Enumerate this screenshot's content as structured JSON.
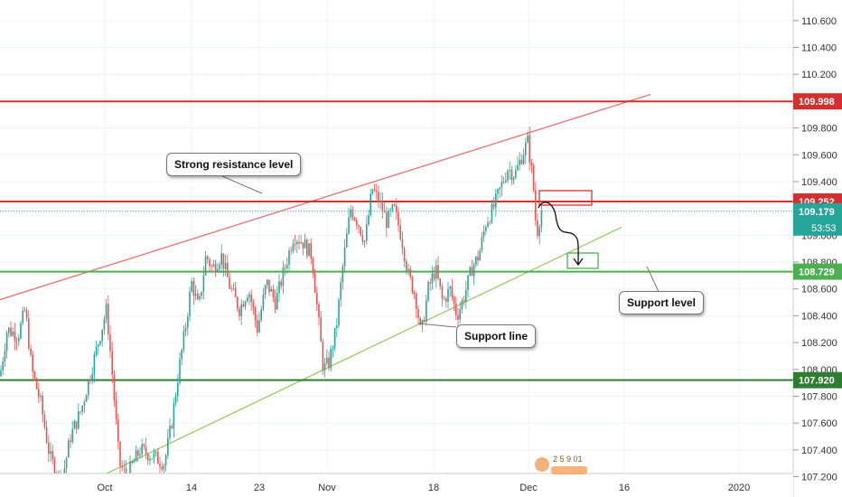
{
  "chart_data": {
    "type": "candlestick",
    "ylim": [
      107.15,
      110.72
    ],
    "x_ticks": [
      "Oct",
      "14",
      "23",
      "Nov",
      "18",
      "Dec",
      "16",
      "2020"
    ],
    "y_ticks": [
      107.2,
      107.4,
      107.6,
      107.8,
      108.0,
      108.2,
      108.4,
      108.6,
      108.8,
      109.0,
      109.2,
      109.4,
      109.6,
      109.8,
      110.0,
      110.2,
      110.4,
      110.6
    ],
    "y_tick_labels": [
      "107.200",
      "107.400",
      "107.600",
      "107.800",
      "108.000",
      "108.200",
      "108.400",
      "108.600",
      "108.800",
      "109.000",
      "109.200",
      "109.400",
      "109.600",
      "109.800",
      "110.000",
      "110.200",
      "110.400",
      "110.600"
    ],
    "price_path": [
      [
        0,
        107.95
      ],
      [
        8,
        108.3
      ],
      [
        20,
        108.25
      ],
      [
        28,
        108.45
      ],
      [
        35,
        108.0
      ],
      [
        45,
        107.75
      ],
      [
        55,
        107.35
      ],
      [
        68,
        107.15
      ],
      [
        78,
        107.5
      ],
      [
        90,
        107.7
      ],
      [
        105,
        108.1
      ],
      [
        118,
        108.45
      ],
      [
        125,
        107.9
      ],
      [
        132,
        107.3
      ],
      [
        140,
        107.2
      ],
      [
        155,
        107.4
      ],
      [
        170,
        107.35
      ],
      [
        182,
        107.3
      ],
      [
        190,
        107.6
      ],
      [
        198,
        108.0
      ],
      [
        205,
        108.3
      ],
      [
        212,
        108.65
      ],
      [
        220,
        108.45
      ],
      [
        228,
        108.85
      ],
      [
        235,
        108.75
      ],
      [
        245,
        108.85
      ],
      [
        255,
        108.6
      ],
      [
        265,
        108.45
      ],
      [
        275,
        108.6
      ],
      [
        285,
        108.3
      ],
      [
        295,
        108.65
      ],
      [
        305,
        108.5
      ],
      [
        315,
        108.75
      ],
      [
        325,
        109.0
      ],
      [
        335,
        108.95
      ],
      [
        345,
        108.85
      ],
      [
        352,
        108.4
      ],
      [
        358,
        108.0
      ],
      [
        364,
        108.05
      ],
      [
        372,
        108.3
      ],
      [
        380,
        108.8
      ],
      [
        388,
        109.2
      ],
      [
        396,
        109.1
      ],
      [
        404,
        108.95
      ],
      [
        412,
        109.35
      ],
      [
        420,
        109.25
      ],
      [
        428,
        109.1
      ],
      [
        436,
        109.2
      ],
      [
        444,
        109.0
      ],
      [
        452,
        108.7
      ],
      [
        460,
        108.55
      ],
      [
        466,
        108.25
      ],
      [
        474,
        108.6
      ],
      [
        482,
        108.75
      ],
      [
        490,
        108.5
      ],
      [
        498,
        108.6
      ],
      [
        506,
        108.4
      ],
      [
        514,
        108.55
      ],
      [
        522,
        108.75
      ],
      [
        530,
        108.85
      ],
      [
        538,
        109.1
      ],
      [
        546,
        109.2
      ],
      [
        554,
        109.35
      ],
      [
        562,
        109.5
      ],
      [
        570,
        109.45
      ],
      [
        578,
        109.6
      ],
      [
        584,
        109.7
      ],
      [
        590,
        109.4
      ],
      [
        594,
        109.0
      ],
      [
        598,
        109.15
      ],
      [
        600,
        109.2
      ]
    ],
    "resistance_levels": [
      {
        "value": 109.998,
        "label": "109.998",
        "color": "#d32f2f"
      },
      {
        "value": 109.252,
        "label": "109.252",
        "color": "#d32f2f"
      }
    ],
    "support_levels": [
      {
        "value": 108.729,
        "label": "108.729",
        "color": "#4caf50"
      },
      {
        "value": 107.92,
        "label": "107.920",
        "color": "#2e7d32"
      }
    ],
    "current_price": {
      "value": 109.179,
      "label": "109.179",
      "countdown": "53:53",
      "color": "#26a69a"
    },
    "trendlines": [
      {
        "kind": "resistance",
        "color": "#e57373",
        "from": [
          0,
          108.52
        ],
        "to": [
          720,
          110.05
        ]
      },
      {
        "kind": "support",
        "color": "#9ccc65",
        "from": [
          95,
          107.15
        ],
        "to": [
          688,
          109.06
        ]
      }
    ],
    "annotations": [
      "Strong resistance level",
      "Support line",
      "Support level"
    ]
  },
  "callouts": {
    "strong_resistance": "Strong resistance level",
    "support_line": "Support line",
    "support_level": "Support level"
  },
  "watermark": "2 5 9 01"
}
